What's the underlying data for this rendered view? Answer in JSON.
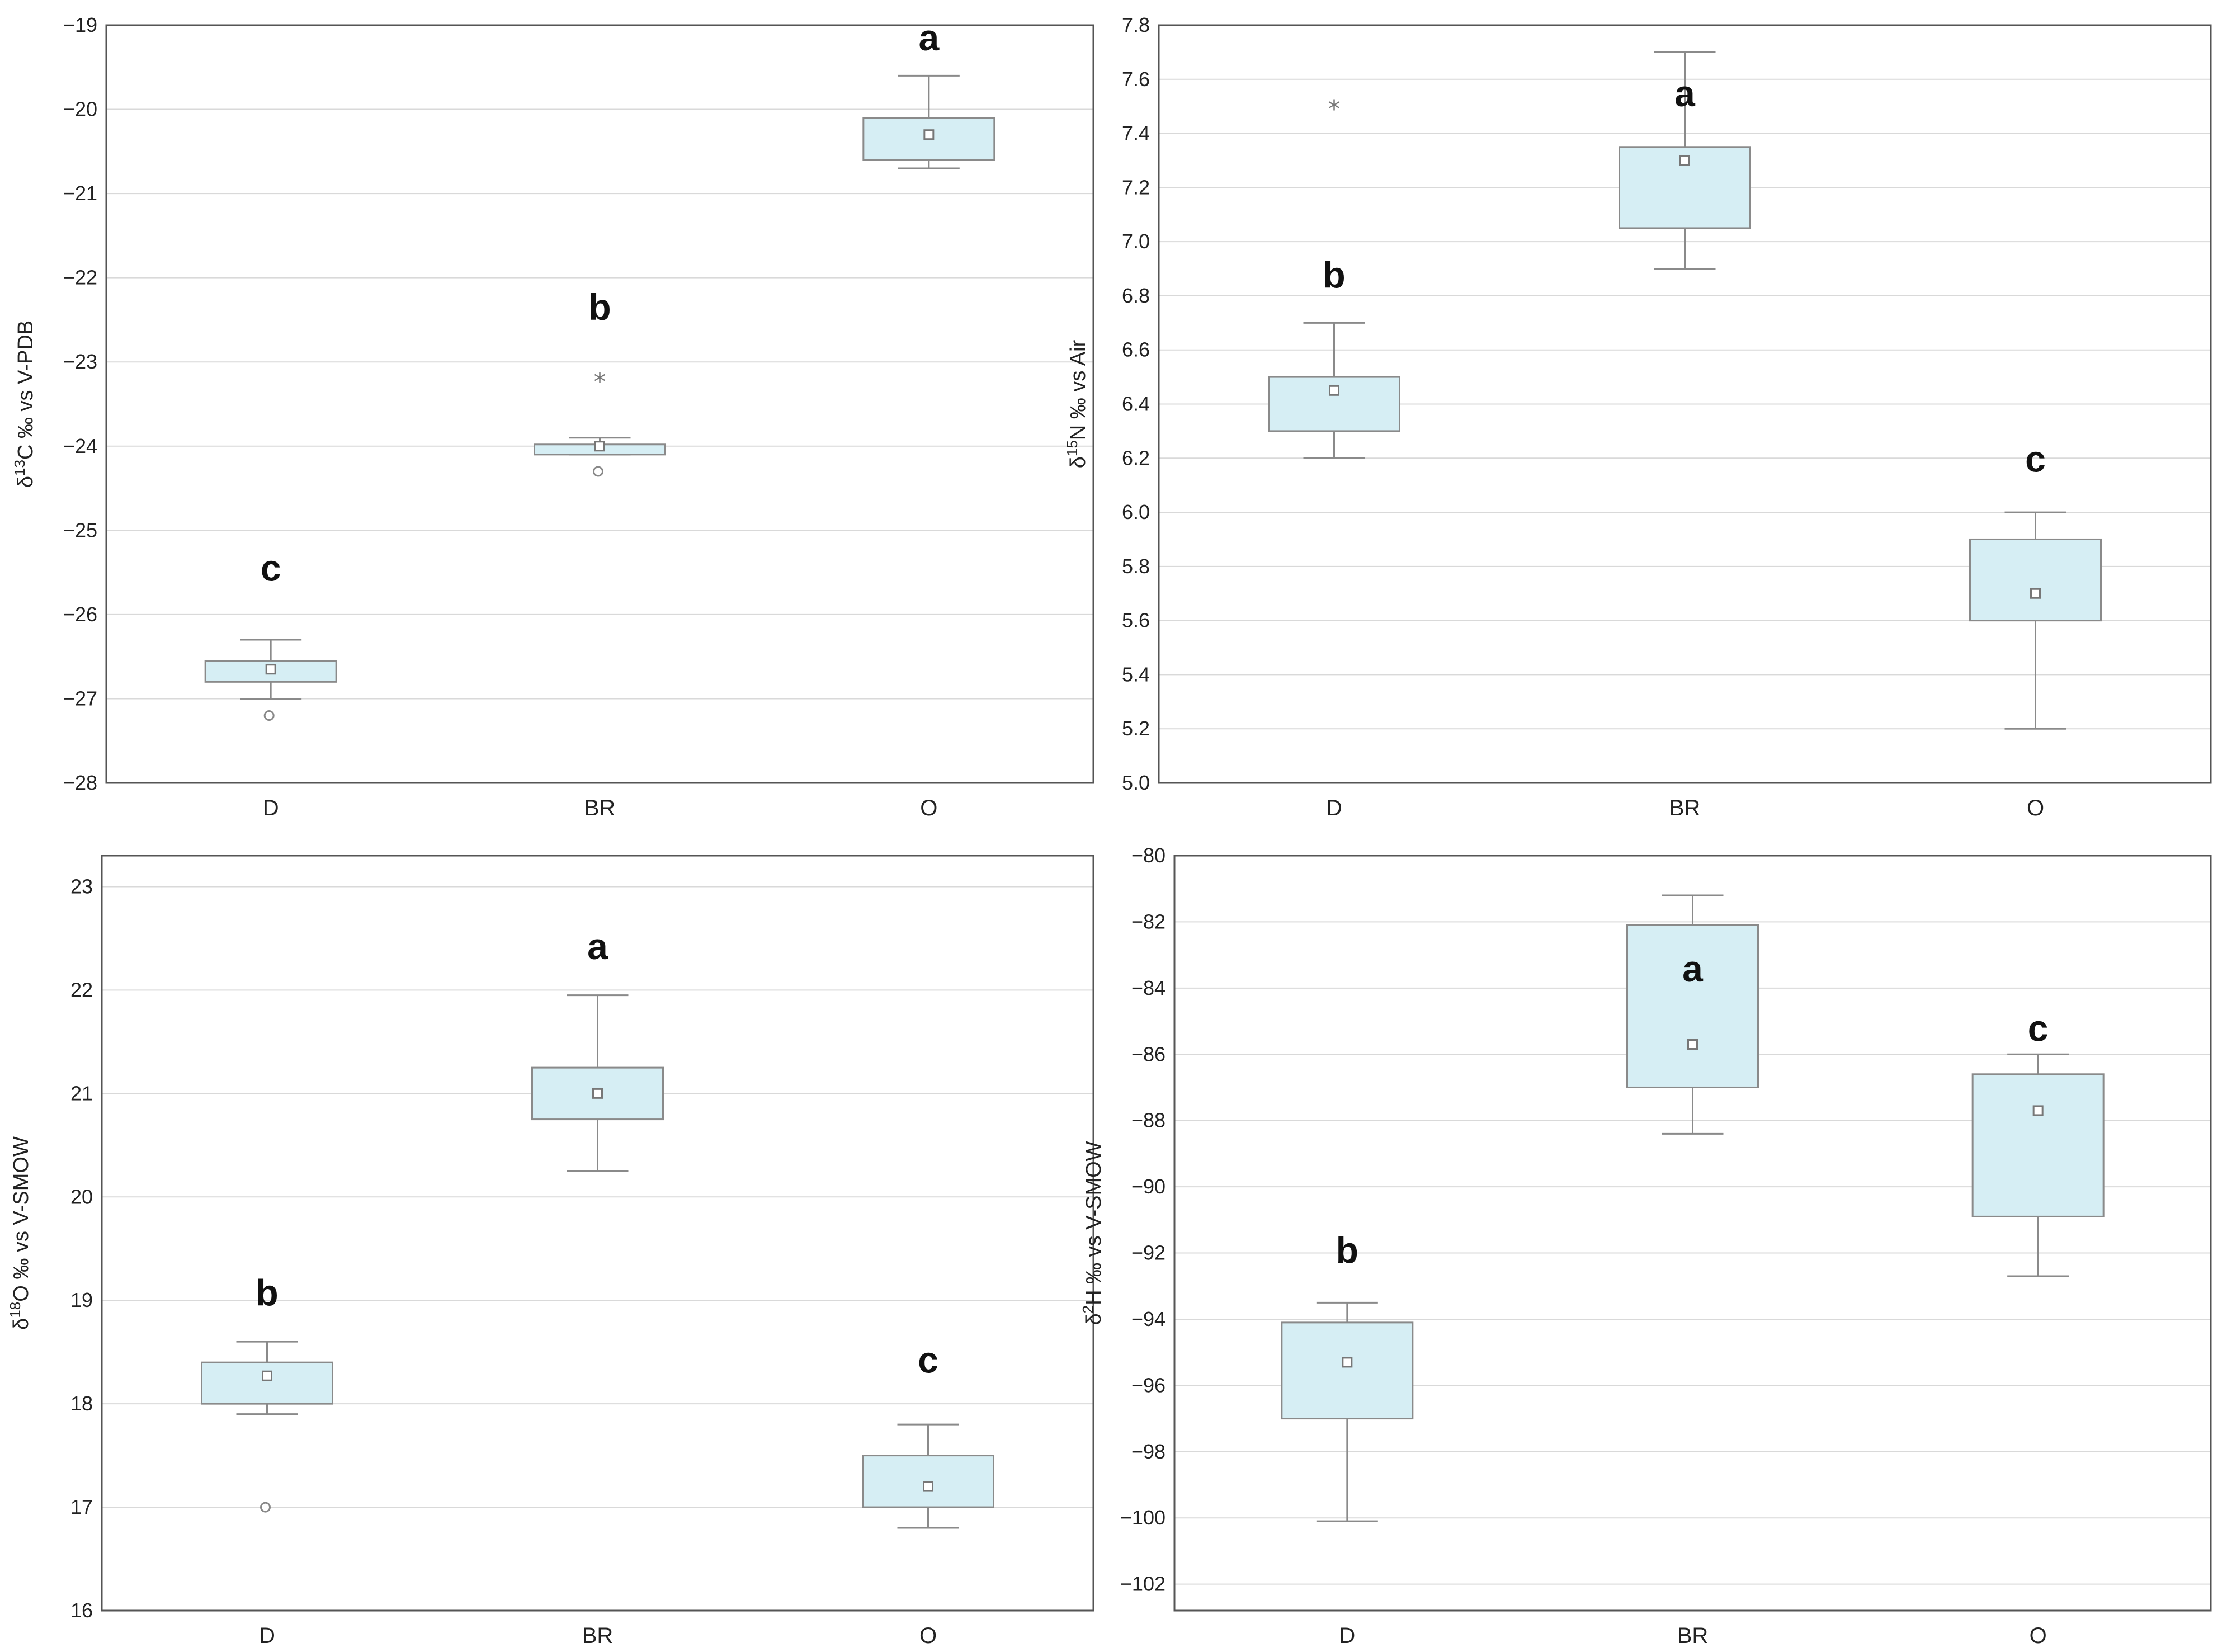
{
  "colors": {
    "box_fill": "#d6eef4",
    "box_stroke": "#8a8a8a",
    "whisker": "#8a8a8a",
    "grid": "#d9d9d9",
    "frame": "#555555"
  },
  "chart_data": [
    {
      "type": "box",
      "id": "d13c",
      "ylabel": {
        "prefix": "δ",
        "sup": "13",
        "rest": "C ‰ vs V-PDB"
      },
      "ylim": [
        -28,
        -19
      ],
      "yticks": [
        -28,
        -27,
        -26,
        -25,
        -24,
        -23,
        -22,
        -21,
        -20,
        -19
      ],
      "tick_labels": [
        "−28",
        "−27",
        "−26",
        "−25",
        "−24",
        "−23",
        "−22",
        "−21",
        "−20",
        "−19"
      ],
      "categories": [
        "D",
        "BR",
        "O"
      ],
      "boxes": [
        {
          "category": "D",
          "whisker_low": -27.0,
          "q1": -26.8,
          "median": -26.65,
          "q3": -26.55,
          "whisker_high": -26.3,
          "outliers": [
            -27.2
          ],
          "extremes": [],
          "letter": "c",
          "letter_y": -25.6
        },
        {
          "category": "BR",
          "whisker_low": -24.1,
          "q1": -24.1,
          "median": -24.0,
          "q3": -23.98,
          "whisker_high": -23.9,
          "outliers": [
            -24.3
          ],
          "extremes": [
            -23.2
          ],
          "letter": "b",
          "letter_y": -22.5
        },
        {
          "category": "O",
          "whisker_low": -20.7,
          "q1": -20.6,
          "median": -20.3,
          "q3": -20.1,
          "whisker_high": -19.6,
          "outliers": [],
          "extremes": [],
          "letter": "a",
          "letter_y": -19.3
        }
      ]
    },
    {
      "type": "box",
      "id": "d15n",
      "ylabel": {
        "prefix": "δ",
        "sup": "15",
        "rest": "N ‰ vs Air"
      },
      "ylim": [
        5.0,
        7.8
      ],
      "yticks": [
        5.0,
        5.2,
        5.4,
        5.6,
        5.8,
        6.0,
        6.2,
        6.4,
        6.6,
        6.8,
        7.0,
        7.2,
        7.4,
        7.6,
        7.8
      ],
      "tick_labels": [
        "5.0",
        "5.2",
        "5.4",
        "5.6",
        "5.8",
        "6.0",
        "6.2",
        "6.4",
        "6.6",
        "6.8",
        "7.0",
        "7.2",
        "7.4",
        "7.6",
        "7.8"
      ],
      "categories": [
        "D",
        "BR",
        "O"
      ],
      "boxes": [
        {
          "category": "D",
          "whisker_low": 6.2,
          "q1": 6.3,
          "median": 6.45,
          "q3": 6.5,
          "whisker_high": 6.7,
          "outliers": [],
          "extremes": [
            7.5
          ],
          "letter": "b",
          "letter_y": 6.83
        },
        {
          "category": "BR",
          "whisker_low": 6.9,
          "q1": 7.05,
          "median": 7.3,
          "q3": 7.35,
          "whisker_high": 7.7,
          "outliers": [],
          "extremes": [],
          "letter": "a",
          "letter_y": 7.5
        },
        {
          "category": "O",
          "whisker_low": 5.2,
          "q1": 5.6,
          "median": 5.7,
          "q3": 5.9,
          "whisker_high": 6.0,
          "outliers": [],
          "extremes": [],
          "letter": "c",
          "letter_y": 6.15
        }
      ]
    },
    {
      "type": "box",
      "id": "d18o",
      "ylabel": {
        "prefix": "δ",
        "sup": "18",
        "rest": "O ‰ vs V-SMOW"
      },
      "ylim": [
        16,
        23.3
      ],
      "yticks": [
        16,
        17,
        18,
        19,
        20,
        21,
        22,
        23
      ],
      "tick_labels": [
        "16",
        "17",
        "18",
        "19",
        "20",
        "21",
        "22",
        "23"
      ],
      "categories": [
        "D",
        "BR",
        "O"
      ],
      "boxes": [
        {
          "category": "D",
          "whisker_low": 17.9,
          "q1": 18.0,
          "median": 18.27,
          "q3": 18.4,
          "whisker_high": 18.6,
          "outliers": [
            17.0
          ],
          "extremes": [],
          "letter": "b",
          "letter_y": 18.95
        },
        {
          "category": "BR",
          "whisker_low": 20.25,
          "q1": 20.75,
          "median": 21.0,
          "q3": 21.25,
          "whisker_high": 21.95,
          "outliers": [],
          "extremes": [],
          "letter": "a",
          "letter_y": 22.3
        },
        {
          "category": "O",
          "whisker_low": 16.8,
          "q1": 17.0,
          "median": 17.2,
          "q3": 17.5,
          "whisker_high": 17.8,
          "outliers": [],
          "extremes": [],
          "letter": "c",
          "letter_y": 18.3
        }
      ]
    },
    {
      "type": "box",
      "id": "d2h",
      "ylabel": {
        "prefix": "δ",
        "sup": "2",
        "rest": "H ‰ vs V-SMOW"
      },
      "ylim": [
        -102.8,
        -80
      ],
      "yticks": [
        -102,
        -100,
        -98,
        -96,
        -94,
        -92,
        -90,
        -88,
        -86,
        -84,
        -82,
        -80
      ],
      "tick_labels": [
        "−102",
        "−100",
        "−98",
        "−96",
        "−94",
        "−92",
        "−90",
        "−88",
        "−86",
        "−84",
        "−82",
        "−80"
      ],
      "categories": [
        "D",
        "BR",
        "O"
      ],
      "boxes": [
        {
          "category": "D",
          "whisker_low": -100.1,
          "q1": -97.0,
          "median": -95.3,
          "q3": -94.1,
          "whisker_high": -93.5,
          "outliers": [],
          "extremes": [],
          "letter": "b",
          "letter_y": -92.3
        },
        {
          "category": "BR",
          "whisker_low": -88.4,
          "q1": -87.0,
          "median": -85.7,
          "q3": -82.1,
          "whisker_high": -81.2,
          "outliers": [],
          "extremes": [],
          "letter": "a",
          "letter_y": -83.8
        },
        {
          "category": "O",
          "whisker_low": -92.7,
          "q1": -90.9,
          "median": -87.7,
          "q3": -86.6,
          "whisker_high": -86.0,
          "outliers": [],
          "extremes": [],
          "letter": "c",
          "letter_y": -85.6
        }
      ]
    }
  ]
}
